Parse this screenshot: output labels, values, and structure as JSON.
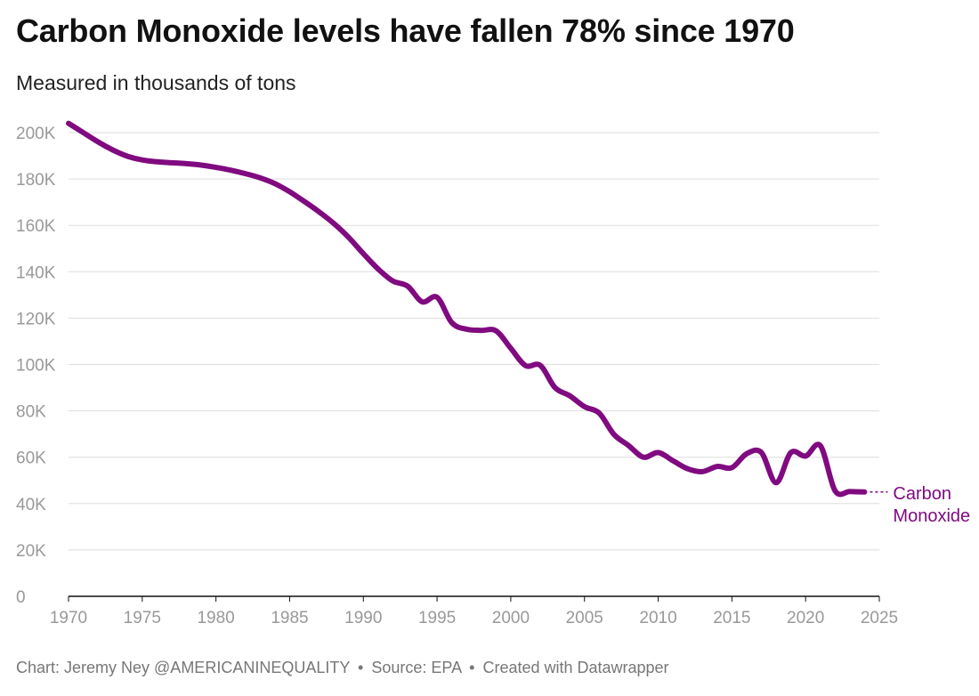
{
  "title": "Carbon Monoxide levels have fallen 78% since 1970",
  "subtitle": "Measured in thousands of tons",
  "footer": {
    "chart_credit": "Chart: Jeremy Ney @AMERICANINEQUALITY",
    "source": "Source: EPA",
    "created_with": "Created with Datawrapper",
    "separator": "•"
  },
  "colors": {
    "series": "#800a80",
    "grid": "#dddddd",
    "axis": "#111111",
    "tick_label": "#999999"
  },
  "chart_data": {
    "type": "line",
    "title": "Carbon Monoxide levels have fallen 78% since 1970",
    "subtitle": "Measured in thousands of tons",
    "xlabel": "",
    "ylabel": "",
    "xlim": [
      1970,
      2025
    ],
    "ylim": [
      0,
      200000
    ],
    "grid": true,
    "x_ticks": [
      1970,
      1975,
      1980,
      1985,
      1990,
      1995,
      2000,
      2005,
      2010,
      2015,
      2020,
      2025
    ],
    "x_tick_labels": [
      "1970",
      "1975",
      "1980",
      "1985",
      "1990",
      "1995",
      "2000",
      "2005",
      "2010",
      "2015",
      "2020",
      "2025"
    ],
    "y_ticks": [
      0,
      20000,
      40000,
      60000,
      80000,
      100000,
      120000,
      140000,
      160000,
      180000,
      200000
    ],
    "y_tick_labels": [
      "0",
      "20K",
      "40K",
      "60K",
      "80K",
      "100K",
      "120K",
      "140K",
      "160K",
      "180K",
      "200K"
    ],
    "series": [
      {
        "name": "Carbon Monoxide",
        "label_lines": [
          "Carbon",
          "Monoxide"
        ],
        "color": "#800a80",
        "x": [
          1970,
          1971,
          1972,
          1973,
          1974,
          1975,
          1976,
          1977,
          1978,
          1979,
          1980,
          1981,
          1982,
          1983,
          1984,
          1985,
          1986,
          1987,
          1988,
          1989,
          1990,
          1991,
          1992,
          1993,
          1994,
          1995,
          1996,
          1997,
          1998,
          1999,
          2000,
          2001,
          2002,
          2003,
          2004,
          2005,
          2006,
          2007,
          2008,
          2009,
          2010,
          2011,
          2012,
          2013,
          2014,
          2015,
          2016,
          2017,
          2018,
          2019,
          2020,
          2021,
          2022,
          2023,
          2024
        ],
        "values": [
          204000,
          200000,
          196000,
          192500,
          189800,
          188200,
          187400,
          187000,
          186600,
          186000,
          185000,
          183800,
          182300,
          180500,
          178000,
          174500,
          170300,
          165800,
          160800,
          154800,
          147800,
          141200,
          136000,
          133800,
          127000,
          129000,
          118000,
          115200,
          114700,
          114500,
          107000,
          99500,
          99600,
          90000,
          86500,
          81800,
          79000,
          69800,
          65000,
          60000,
          62000,
          58500,
          55000,
          53800,
          56000,
          55500,
          61500,
          62000,
          49000,
          62000,
          60500,
          65000,
          45500,
          45200,
          45000
        ]
      }
    ]
  }
}
